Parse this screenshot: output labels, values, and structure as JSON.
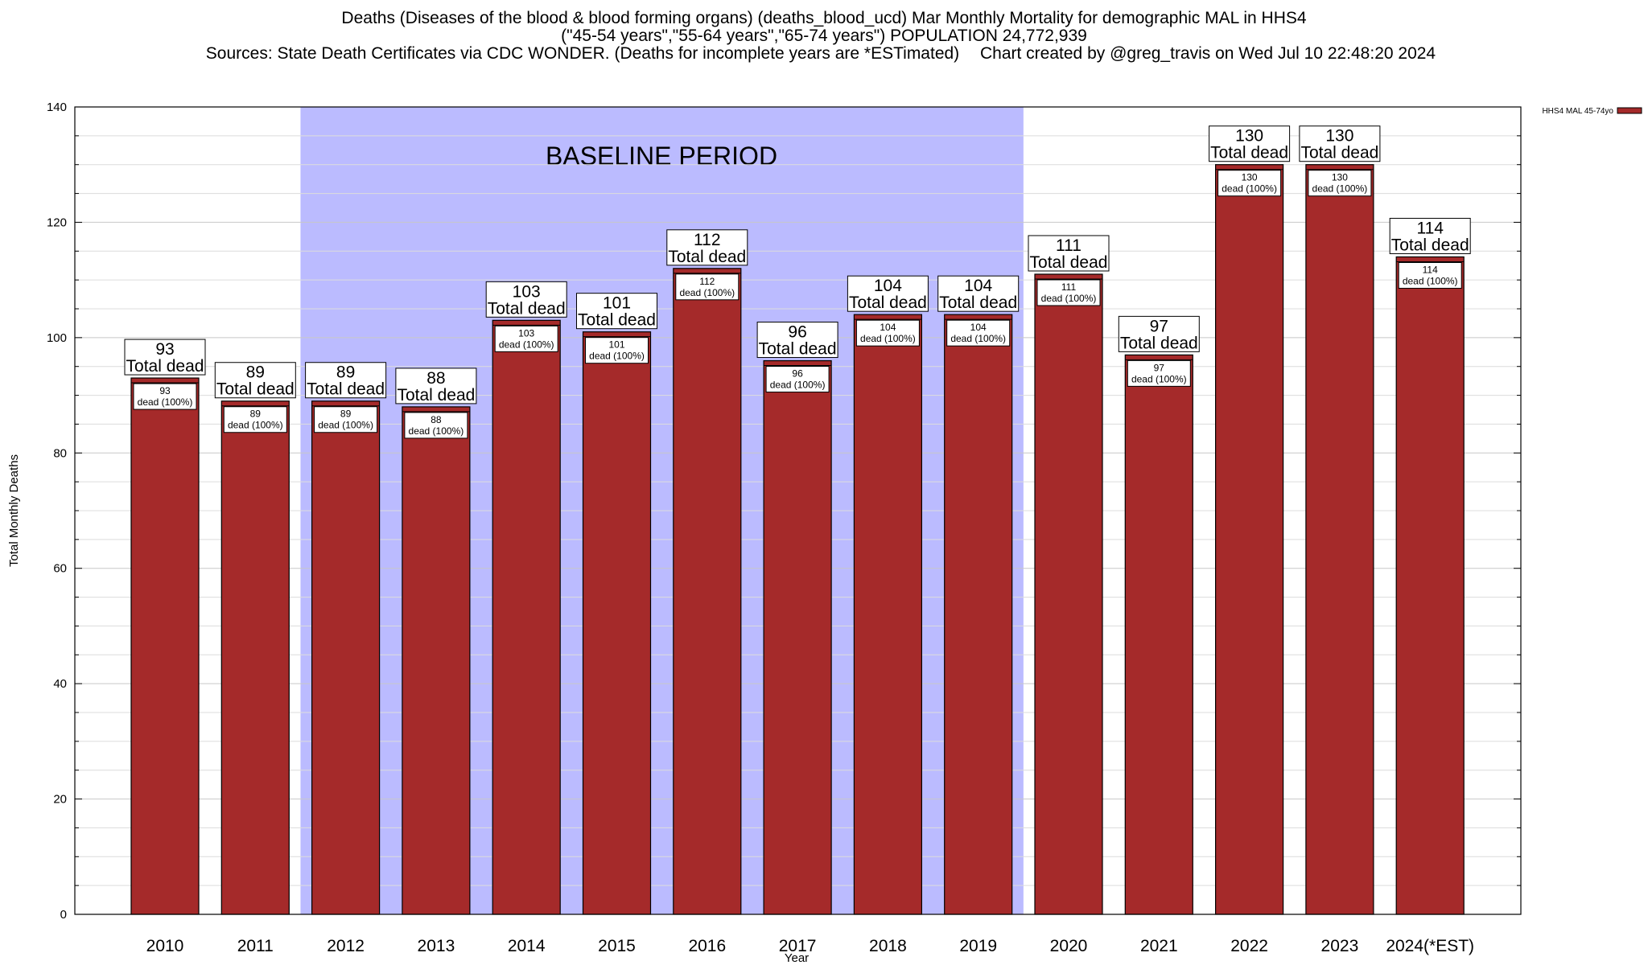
{
  "title": {
    "line1": "Deaths (Diseases of the blood & blood forming organs) (deaths_blood_ucd) Mar Monthly Mortality for demographic MAL in HHS4",
    "line2": "(\"45-54 years\",\"55-64 years\",\"65-74 years\") POPULATION 24,772,939",
    "line3": "Sources: State Death Certificates via CDC WONDER. (Deaths for incomplete years are *ESTimated)",
    "credit": "Chart created by @greg_travis on Wed Jul 10 22:48:20 2024"
  },
  "chart_data": {
    "type": "bar",
    "title": "Deaths (Diseases of the blood & blood forming organs) (deaths_blood_ucd) Mar Monthly Mortality for demographic MAL in HHS4",
    "xlabel": "Year",
    "ylabel": "Total Monthly Deaths",
    "ylim": [
      0,
      140
    ],
    "yticks": [
      0,
      20,
      40,
      60,
      80,
      100,
      120,
      140
    ],
    "grid": true,
    "legend_position": "top-right",
    "categories": [
      "2010",
      "2011",
      "2012",
      "2013",
      "2014",
      "2015",
      "2016",
      "2017",
      "2018",
      "2019",
      "2020",
      "2021",
      "2022",
      "2023",
      "2024(*EST)"
    ],
    "series": [
      {
        "name": "HHS4 MAL 45-74yo",
        "color": "#a52a2a",
        "values": [
          93,
          89,
          89,
          88,
          103,
          101,
          112,
          96,
          104,
          104,
          111,
          97,
          130,
          130,
          114
        ]
      }
    ],
    "total_label": "Total dead",
    "segment_label": "dead (100%)",
    "baseline": {
      "label": "BASELINE PERIOD",
      "start": "2012",
      "end": "2019",
      "color": "#bbbbff"
    }
  }
}
